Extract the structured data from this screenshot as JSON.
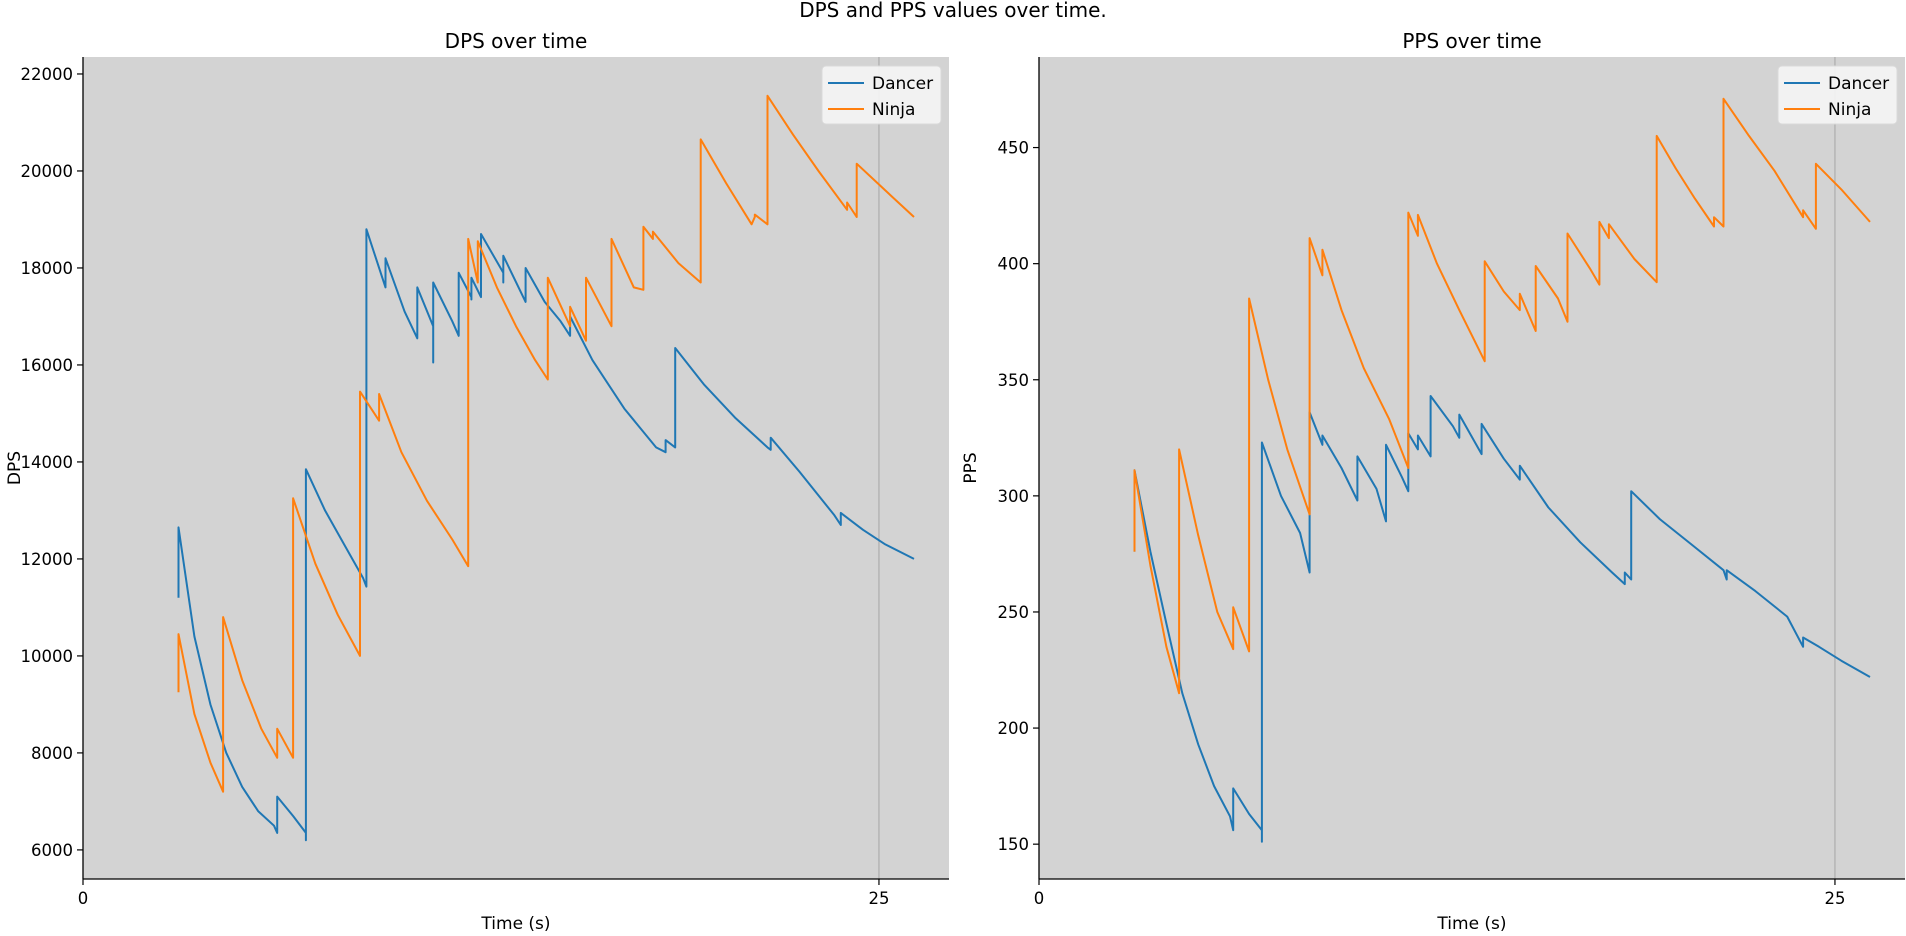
{
  "figure": {
    "title": "DPS and PPS values over time."
  },
  "colors": {
    "Dancer": "#1f77b4",
    "Ninja": "#ff7f0e",
    "axes_face": "#d3d3d3",
    "vline": "#b0b0b0"
  },
  "chart_data": [
    {
      "type": "line",
      "title": "DPS over time",
      "xlabel": "Time (s)",
      "ylabel": "DPS",
      "xlim": [
        0,
        27.2
      ],
      "ylim": [
        5400,
        22350
      ],
      "xticks": [
        0,
        25
      ],
      "yticks": [
        6000,
        8000,
        10000,
        12000,
        14000,
        16000,
        18000,
        20000,
        22000
      ],
      "vline_x": 25,
      "grid": false,
      "legend": "top-right",
      "series": [
        {
          "name": "Dancer",
          "points": [
            [
              3.0,
              11200
            ],
            [
              3.0,
              12650
            ],
            [
              3.5,
              10400
            ],
            [
              4.0,
              9000
            ],
            [
              4.5,
              8000
            ],
            [
              5.0,
              7300
            ],
            [
              5.5,
              6800
            ],
            [
              6.0,
              6500
            ],
            [
              6.1,
              6350
            ],
            [
              6.1,
              7100
            ],
            [
              6.6,
              6700
            ],
            [
              7.0,
              6350
            ],
            [
              7.0,
              6200
            ],
            [
              7.0,
              13850
            ],
            [
              7.6,
              13000
            ],
            [
              8.2,
              12300
            ],
            [
              8.8,
              11600
            ],
            [
              8.9,
              11430
            ],
            [
              8.9,
              18800
            ],
            [
              9.5,
              17600
            ],
            [
              9.5,
              18200
            ],
            [
              10.1,
              17100
            ],
            [
              10.5,
              16550
            ],
            [
              10.5,
              17600
            ],
            [
              11.0,
              16800
            ],
            [
              11.0,
              16050
            ],
            [
              11.0,
              17700
            ],
            [
              11.6,
              16900
            ],
            [
              11.8,
              16600
            ],
            [
              11.8,
              17900
            ],
            [
              12.2,
              17400
            ],
            [
              12.2,
              17350
            ],
            [
              12.2,
              17800
            ],
            [
              12.5,
              17400
            ],
            [
              12.5,
              18700
            ],
            [
              13.2,
              17900
            ],
            [
              13.2,
              17700
            ],
            [
              13.2,
              18250
            ],
            [
              13.9,
              17300
            ],
            [
              13.9,
              18000
            ],
            [
              14.5,
              17300
            ],
            [
              15.0,
              16900
            ],
            [
              15.3,
              16600
            ],
            [
              15.3,
              17000
            ],
            [
              16.0,
              16100
            ],
            [
              17.0,
              15100
            ],
            [
              18.0,
              14300
            ],
            [
              18.3,
              14200
            ],
            [
              18.3,
              14450
            ],
            [
              18.6,
              14300
            ],
            [
              18.6,
              16350
            ],
            [
              19.5,
              15600
            ],
            [
              20.5,
              14900
            ],
            [
              21.5,
              14300
            ],
            [
              21.6,
              14250
            ],
            [
              21.6,
              14500
            ],
            [
              22.5,
              13800
            ],
            [
              23.6,
              12900
            ],
            [
              23.8,
              12700
            ],
            [
              23.8,
              12950
            ],
            [
              24.5,
              12600
            ],
            [
              25.2,
              12300
            ],
            [
              26.1,
              12000
            ]
          ]
        },
        {
          "name": "Ninja",
          "points": [
            [
              3.0,
              9250
            ],
            [
              3.0,
              10450
            ],
            [
              3.5,
              8800
            ],
            [
              4.0,
              7800
            ],
            [
              4.4,
              7200
            ],
            [
              4.4,
              10800
            ],
            [
              5.0,
              9500
            ],
            [
              5.6,
              8500
            ],
            [
              6.1,
              7900
            ],
            [
              6.1,
              8500
            ],
            [
              6.6,
              7900
            ],
            [
              6.6,
              13250
            ],
            [
              7.3,
              11900
            ],
            [
              8.0,
              10850
            ],
            [
              8.7,
              10000
            ],
            [
              8.7,
              15450
            ],
            [
              9.3,
              14850
            ],
            [
              9.3,
              15400
            ],
            [
              10.0,
              14200
            ],
            [
              10.8,
              13200
            ],
            [
              11.6,
              12400
            ],
            [
              12.1,
              11850
            ],
            [
              12.1,
              18600
            ],
            [
              12.4,
              17700
            ],
            [
              12.4,
              18550
            ],
            [
              13.0,
              17600
            ],
            [
              13.6,
              16800
            ],
            [
              14.2,
              16100
            ],
            [
              14.6,
              15700
            ],
            [
              14.6,
              17800
            ],
            [
              15.3,
              16800
            ],
            [
              15.3,
              17200
            ],
            [
              15.8,
              16500
            ],
            [
              15.8,
              17800
            ],
            [
              16.6,
              16800
            ],
            [
              16.6,
              18600
            ],
            [
              17.3,
              17600
            ],
            [
              17.6,
              17550
            ],
            [
              17.6,
              18850
            ],
            [
              17.9,
              18600
            ],
            [
              17.9,
              18750
            ],
            [
              18.7,
              18100
            ],
            [
              19.4,
              17700
            ],
            [
              19.4,
              20650
            ],
            [
              20.2,
              19750
            ],
            [
              21.0,
              18900
            ],
            [
              21.1,
              19050
            ],
            [
              21.1,
              19100
            ],
            [
              21.5,
              18900
            ],
            [
              21.5,
              21550
            ],
            [
              22.3,
              20750
            ],
            [
              23.1,
              20000
            ],
            [
              24.0,
              19200
            ],
            [
              24.0,
              19350
            ],
            [
              24.3,
              19050
            ],
            [
              24.3,
              20150
            ],
            [
              25.2,
              19600
            ],
            [
              26.1,
              19050
            ]
          ]
        }
      ]
    },
    {
      "type": "line",
      "title": "PPS over time",
      "xlabel": "Time (s)",
      "ylabel": "PPS",
      "xlim": [
        0,
        27.2
      ],
      "ylim": [
        135,
        489
      ],
      "xticks": [
        0,
        25
      ],
      "yticks": [
        150,
        200,
        250,
        300,
        350,
        400,
        450
      ],
      "vline_x": 25,
      "grid": false,
      "legend": "top-right",
      "series": [
        {
          "name": "Dancer",
          "points": [
            [
              3.0,
              276
            ],
            [
              3.0,
              311
            ],
            [
              3.5,
              276
            ],
            [
              4.0,
              245
            ],
            [
              4.5,
              215
            ],
            [
              5.0,
              193
            ],
            [
              5.5,
              175
            ],
            [
              6.0,
              162
            ],
            [
              6.1,
              156
            ],
            [
              6.1,
              174
            ],
            [
              6.6,
              163
            ],
            [
              7.0,
              156
            ],
            [
              7.0,
              151
            ],
            [
              7.0,
              323
            ],
            [
              7.6,
              300
            ],
            [
              8.2,
              284
            ],
            [
              8.5,
              267
            ],
            [
              8.5,
              336
            ],
            [
              8.9,
              322
            ],
            [
              8.9,
              326
            ],
            [
              9.5,
              312
            ],
            [
              10.0,
              298
            ],
            [
              10.0,
              317
            ],
            [
              10.6,
              303
            ],
            [
              10.9,
              289
            ],
            [
              10.9,
              322
            ],
            [
              11.4,
              308
            ],
            [
              11.6,
              302
            ],
            [
              11.6,
              327
            ],
            [
              11.9,
              320
            ],
            [
              11.9,
              326
            ],
            [
              12.3,
              317
            ],
            [
              12.3,
              343
            ],
            [
              13.0,
              330
            ],
            [
              13.2,
              325
            ],
            [
              13.2,
              335
            ],
            [
              13.9,
              318
            ],
            [
              13.9,
              331
            ],
            [
              14.6,
              316
            ],
            [
              15.1,
              307
            ],
            [
              15.1,
              313
            ],
            [
              16.0,
              295
            ],
            [
              17.0,
              280
            ],
            [
              18.0,
              267
            ],
            [
              18.4,
              262
            ],
            [
              18.4,
              267
            ],
            [
              18.6,
              264
            ],
            [
              18.6,
              302
            ],
            [
              19.5,
              290
            ],
            [
              20.5,
              279
            ],
            [
              21.5,
              268
            ],
            [
              21.6,
              264
            ],
            [
              21.6,
              268
            ],
            [
              22.5,
              259
            ],
            [
              23.5,
              248
            ],
            [
              24.0,
              235
            ],
            [
              24.0,
              239
            ],
            [
              24.5,
              235
            ],
            [
              25.2,
              229
            ],
            [
              26.1,
              222
            ]
          ]
        },
        {
          "name": "Ninja",
          "points": [
            [
              3.0,
              276
            ],
            [
              3.0,
              311
            ],
            [
              3.5,
              270
            ],
            [
              4.0,
              235
            ],
            [
              4.4,
              215
            ],
            [
              4.4,
              320
            ],
            [
              5.0,
              283
            ],
            [
              5.6,
              250
            ],
            [
              6.1,
              234
            ],
            [
              6.1,
              252
            ],
            [
              6.6,
              233
            ],
            [
              6.6,
              385
            ],
            [
              7.2,
              350
            ],
            [
              7.8,
              320
            ],
            [
              8.5,
              292
            ],
            [
              8.5,
              411
            ],
            [
              8.9,
              395
            ],
            [
              8.9,
              406
            ],
            [
              9.5,
              380
            ],
            [
              10.2,
              355
            ],
            [
              11.0,
              333
            ],
            [
              11.6,
              312
            ],
            [
              11.6,
              422
            ],
            [
              11.9,
              412
            ],
            [
              11.9,
              421
            ],
            [
              12.5,
              400
            ],
            [
              13.2,
              380
            ],
            [
              14.0,
              358
            ],
            [
              14.0,
              401
            ],
            [
              14.6,
              388
            ],
            [
              15.1,
              380
            ],
            [
              15.1,
              387
            ],
            [
              15.6,
              371
            ],
            [
              15.6,
              399
            ],
            [
              16.3,
              385
            ],
            [
              16.6,
              375
            ],
            [
              16.6,
              413
            ],
            [
              17.3,
              398
            ],
            [
              17.6,
              391
            ],
            [
              17.6,
              418
            ],
            [
              17.9,
              411
            ],
            [
              17.9,
              417
            ],
            [
              18.7,
              402
            ],
            [
              19.4,
              392
            ],
            [
              19.4,
              455
            ],
            [
              20.0,
              441
            ],
            [
              20.6,
              428
            ],
            [
              21.2,
              416
            ],
            [
              21.2,
              420
            ],
            [
              21.5,
              416
            ],
            [
              21.5,
              471
            ],
            [
              22.3,
              455
            ],
            [
              23.1,
              440
            ],
            [
              24.0,
              420
            ],
            [
              24.0,
              423
            ],
            [
              24.4,
              415
            ],
            [
              24.4,
              443
            ],
            [
              25.2,
              432
            ],
            [
              26.1,
              418
            ]
          ]
        }
      ]
    }
  ]
}
